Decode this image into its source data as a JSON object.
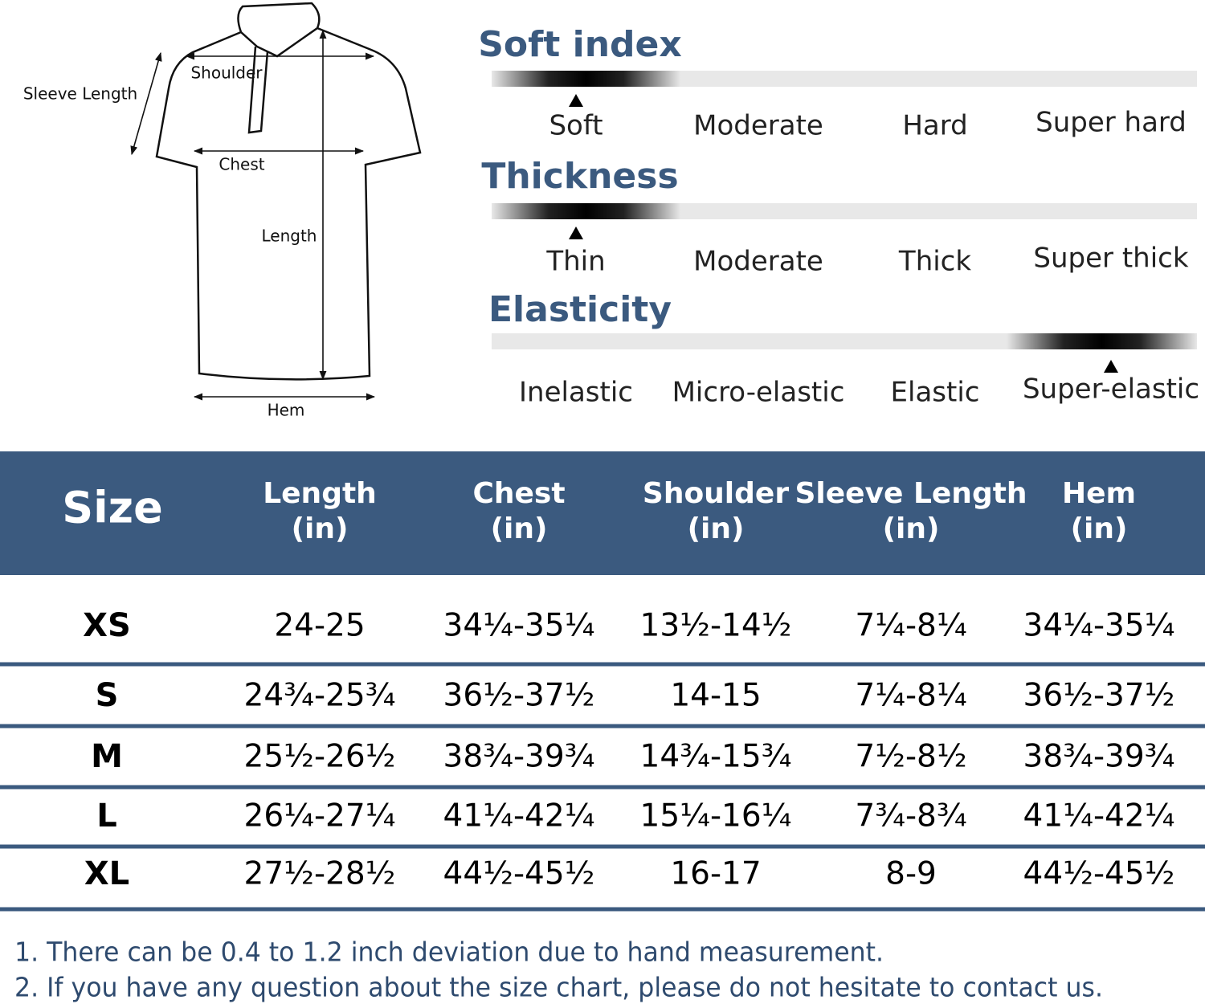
{
  "diagram": {
    "labels": [
      "Sleeve Length",
      "Shoulder",
      "Chest",
      "Length",
      "Hem"
    ]
  },
  "scales": [
    {
      "title": "Soft index",
      "options": [
        "Soft",
        "Moderate",
        "Hard",
        "Super hard"
      ],
      "selected": 0
    },
    {
      "title": "Thickness",
      "options": [
        "Thin",
        "Moderate",
        "Thick",
        "Super thick"
      ],
      "selected": 0
    },
    {
      "title": "Elasticity",
      "options": [
        "Inelastic",
        "Micro-elastic",
        "Elastic",
        "Super-elastic"
      ],
      "selected": 3
    }
  ],
  "table": {
    "size_header": "Size",
    "columns": [
      {
        "name": "Length",
        "unit": "(in)"
      },
      {
        "name": "Chest",
        "unit": "(in)"
      },
      {
        "name": "Shoulder",
        "unit": "(in)"
      },
      {
        "name": "Sleeve Length",
        "unit": "(in)"
      },
      {
        "name": "Hem",
        "unit": "(in)"
      }
    ],
    "rows": [
      {
        "size": "XS",
        "values": [
          "24-25",
          "34¼-35¼",
          "13½-14½",
          "7¼-8¼",
          "34¼-35¼"
        ]
      },
      {
        "size": "S",
        "values": [
          "24¾-25¾",
          "36½-37½",
          "14-15",
          "7¼-8¼",
          "36½-37½"
        ]
      },
      {
        "size": "M",
        "values": [
          "25½-26½",
          "38¾-39¾",
          "14¾-15¾",
          "7½-8½",
          "38¾-39¾"
        ]
      },
      {
        "size": "L",
        "values": [
          "26¼-27¼",
          "41¼-42¼",
          "15¼-16¼",
          "7¾-8¾",
          "41¼-42¼"
        ]
      },
      {
        "size": "XL",
        "values": [
          "27½-28½",
          "44½-45½",
          "16-17",
          "8-9",
          "44½-45½"
        ]
      }
    ]
  },
  "notes": [
    "1. There can be 0.4 to 1.2 inch deviation due to hand measurement.",
    "2. If you have any question about the size chart, please do not hesitate to contact us."
  ]
}
